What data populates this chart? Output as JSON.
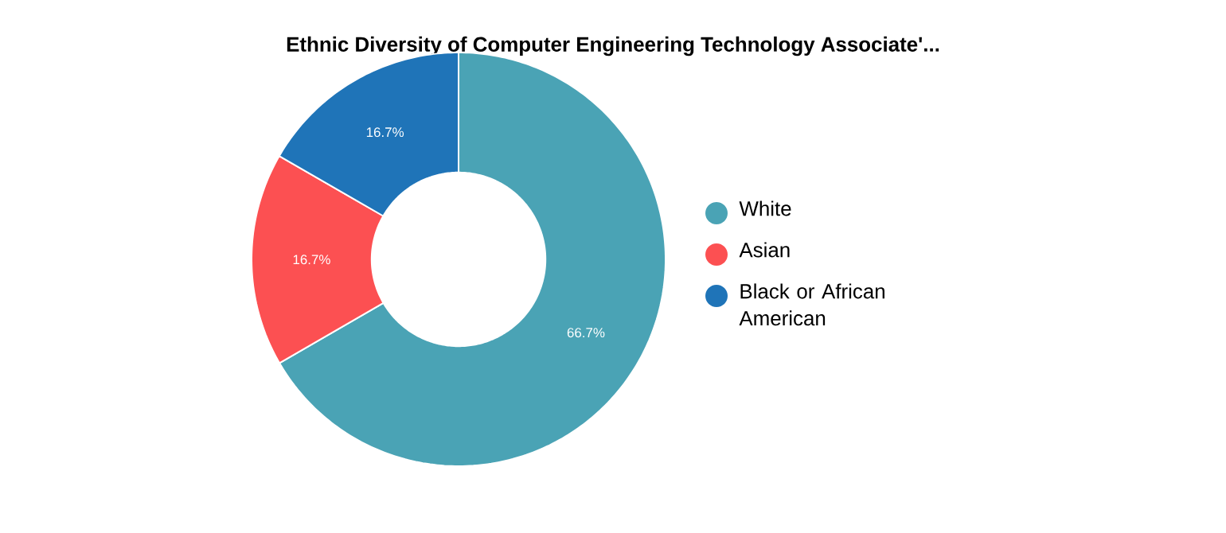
{
  "chart_data": {
    "type": "donut",
    "title": "Ethnic Diversity of Computer Engineering Technology Associate'...",
    "categories": [
      "White",
      "Asian",
      "Black or African American"
    ],
    "values": [
      66.7,
      16.7,
      16.7
    ],
    "value_labels": [
      "66.7%",
      "16.7%",
      "16.7%"
    ],
    "colors": [
      "#4aa3b5",
      "#fc5052",
      "#1f74b8"
    ],
    "legend": "right"
  }
}
